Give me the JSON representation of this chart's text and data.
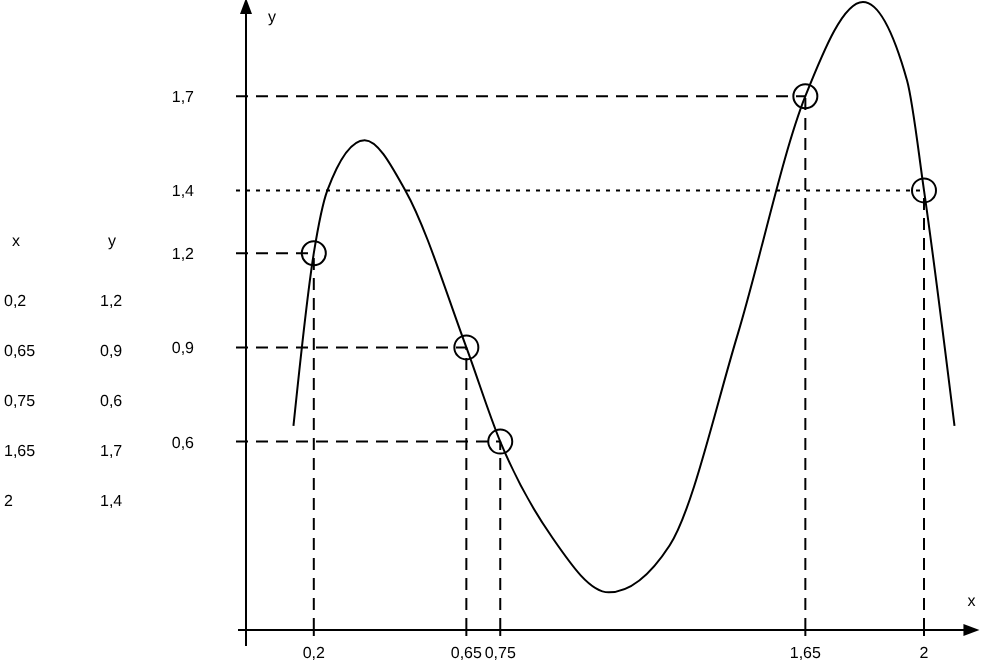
{
  "chart_data": {
    "type": "line",
    "xlabel": "x",
    "ylabel": "y",
    "xlim": [
      0,
      2.14
    ],
    "ylim": [
      0,
      2.0
    ],
    "xticks": [
      {
        "value": 0.2,
        "label": "0,2"
      },
      {
        "value": 0.65,
        "label": "0,65"
      },
      {
        "value": 0.75,
        "label": "0,75"
      },
      {
        "value": 1.65,
        "label": "1,65"
      },
      {
        "value": 2,
        "label": "2"
      }
    ],
    "yticks": [
      {
        "value": 0.6,
        "label": "0,6"
      },
      {
        "value": 0.9,
        "label": "0,9"
      },
      {
        "value": 1.2,
        "label": "1,2"
      },
      {
        "value": 1.4,
        "label": "1,4"
      },
      {
        "value": 1.7,
        "label": "1,7"
      }
    ],
    "grid": false,
    "annotations": [
      "x",
      "y",
      "0,2",
      "1,2",
      "0,65",
      "0,9",
      "0,75",
      "0,6",
      "1,65",
      "1,7",
      "2",
      "1,4"
    ],
    "series": [
      {
        "color": "#000000",
        "marker": "none",
        "line_style": "solid",
        "x": [
          0.14,
          0.2,
          0.24,
          0.35,
          0.47,
          0.65,
          0.75,
          0.9,
          1.07,
          1.25,
          1.45,
          1.65,
          1.82,
          1.95,
          2.0,
          2.09
        ],
        "values": [
          0.65,
          1.2,
          1.4,
          1.56,
          1.4,
          0.9,
          0.6,
          0.3,
          0.12,
          0.27,
          0.94,
          1.7,
          2.0,
          1.75,
          1.4,
          0.65
        ]
      },
      {
        "type": "scatter",
        "color": "#000000",
        "marker": "circle",
        "x": [
          0.2,
          0.65,
          0.75,
          1.65,
          2
        ],
        "values": [
          1.2,
          0.9,
          0.6,
          1.7,
          1.4
        ]
      }
    ],
    "ref_lines": [
      {
        "axis": "x",
        "value": 0.2,
        "line_style": "dashed"
      },
      {
        "axis": "x",
        "value": 0.65,
        "line_style": "dashed"
      },
      {
        "axis": "x",
        "value": 0.75,
        "line_style": "dashed"
      },
      {
        "axis": "x",
        "value": 1.65,
        "line_style": "dashed"
      },
      {
        "axis": "x",
        "value": 2,
        "line_style": "dashed"
      },
      {
        "axis": "y",
        "value": 1.2,
        "line_style": "dashed"
      },
      {
        "axis": "y",
        "value": 0.9,
        "line_style": "dashed"
      },
      {
        "axis": "y",
        "value": 0.6,
        "line_style": "dashed"
      },
      {
        "axis": "y",
        "value": 1.7,
        "line_style": "dashed"
      },
      {
        "axis": "y",
        "value": 1.4,
        "line_style": "dotted"
      }
    ]
  }
}
